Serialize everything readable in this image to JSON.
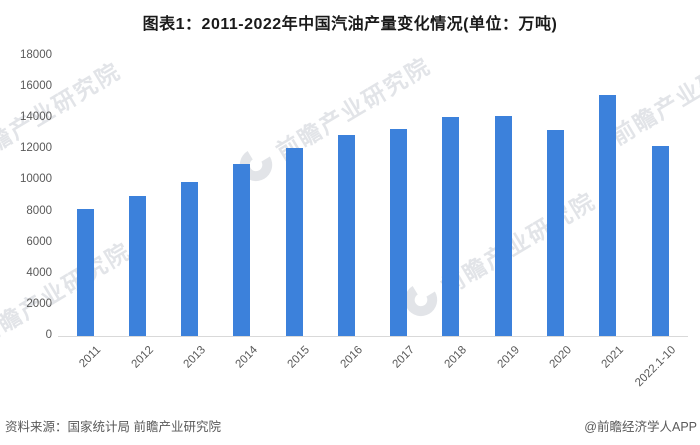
{
  "chart": {
    "title": "图表1：2011-2022年中国汽油产量变化情况(单位：万吨)"
  },
  "chart_data": {
    "type": "bar",
    "title": "图表1：2011-2022年中国汽油产量变化情况(单位：万吨)",
    "categories": [
      "2011",
      "2012",
      "2013",
      "2014",
      "2015",
      "2016",
      "2017",
      "2018",
      "2019",
      "2020",
      "2021",
      "2022.1-10"
    ],
    "values": [
      8140,
      8980,
      9900,
      11050,
      12100,
      12930,
      13280,
      14050,
      14150,
      13250,
      15500,
      12190
    ],
    "xlabel": "",
    "ylabel": "",
    "ylim": [
      0,
      18000
    ],
    "ytick_step": 2000,
    "ytick_labels": [
      "0",
      "2000",
      "4000",
      "6000",
      "8000",
      "10000",
      "12000",
      "14000",
      "16000",
      "18000"
    ],
    "grid": false,
    "legend_position": "none",
    "bar_color": "#3C81DB"
  },
  "colors": {
    "bar": "#3C81DB",
    "axis_text": "#595959",
    "axis_line": "#d9d9d9",
    "title_text": "#1a1a1a",
    "watermark": "#c6cbd2"
  },
  "watermark": {
    "text": "前瞻产业研究院"
  },
  "footer": {
    "source": "资料来源：国家统计局 前瞻产业研究院",
    "credit": "@前瞻经济学人APP"
  }
}
